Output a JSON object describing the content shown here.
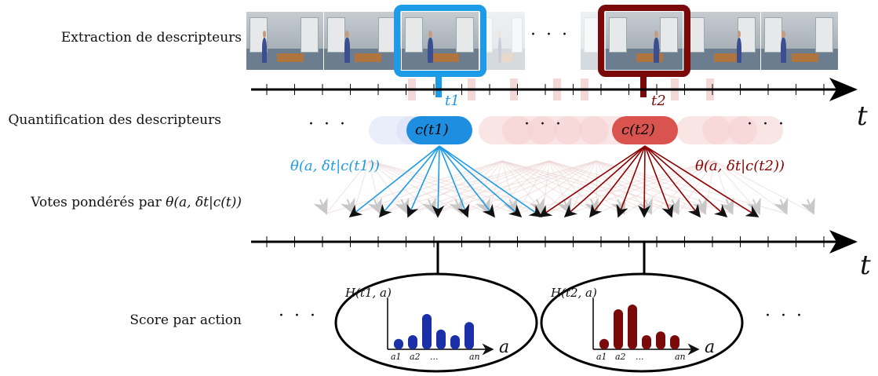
{
  "rows": {
    "extraction": "Extraction de descripteurs",
    "quantification": "Quantification des descripteurs",
    "votes_prefix": "Votes pondérés par ",
    "votes_formula": "θ(a, δt|c(t))",
    "score": "Score par action"
  },
  "time_axis_label": "t",
  "ellipsis": "· · ·",
  "t1": {
    "time_label": "t1",
    "cluster_label": "c(t1)",
    "weight_label": "θ(a, δt|c(t1))",
    "histogram_label": "H(t1, a)",
    "color": "#1e9be6",
    "bar_color": "#1a2fa8",
    "bars": [
      0.22,
      0.3,
      0.75,
      0.42,
      0.3,
      0.58
    ]
  },
  "t2": {
    "time_label": "t2",
    "cluster_label": "c(t2)",
    "weight_label": "θ(a, δt|c(t2))",
    "histogram_label": "H(t2, a)",
    "color": "#8b0000",
    "cluster_fill": "#d9534f",
    "bar_color": "#7a0a0a",
    "bars": [
      0.22,
      0.85,
      0.95,
      0.3,
      0.38,
      0.3
    ]
  },
  "hist_axes": {
    "x_label": "a",
    "ticks": [
      "a1",
      "a2",
      "...",
      "an"
    ]
  }
}
